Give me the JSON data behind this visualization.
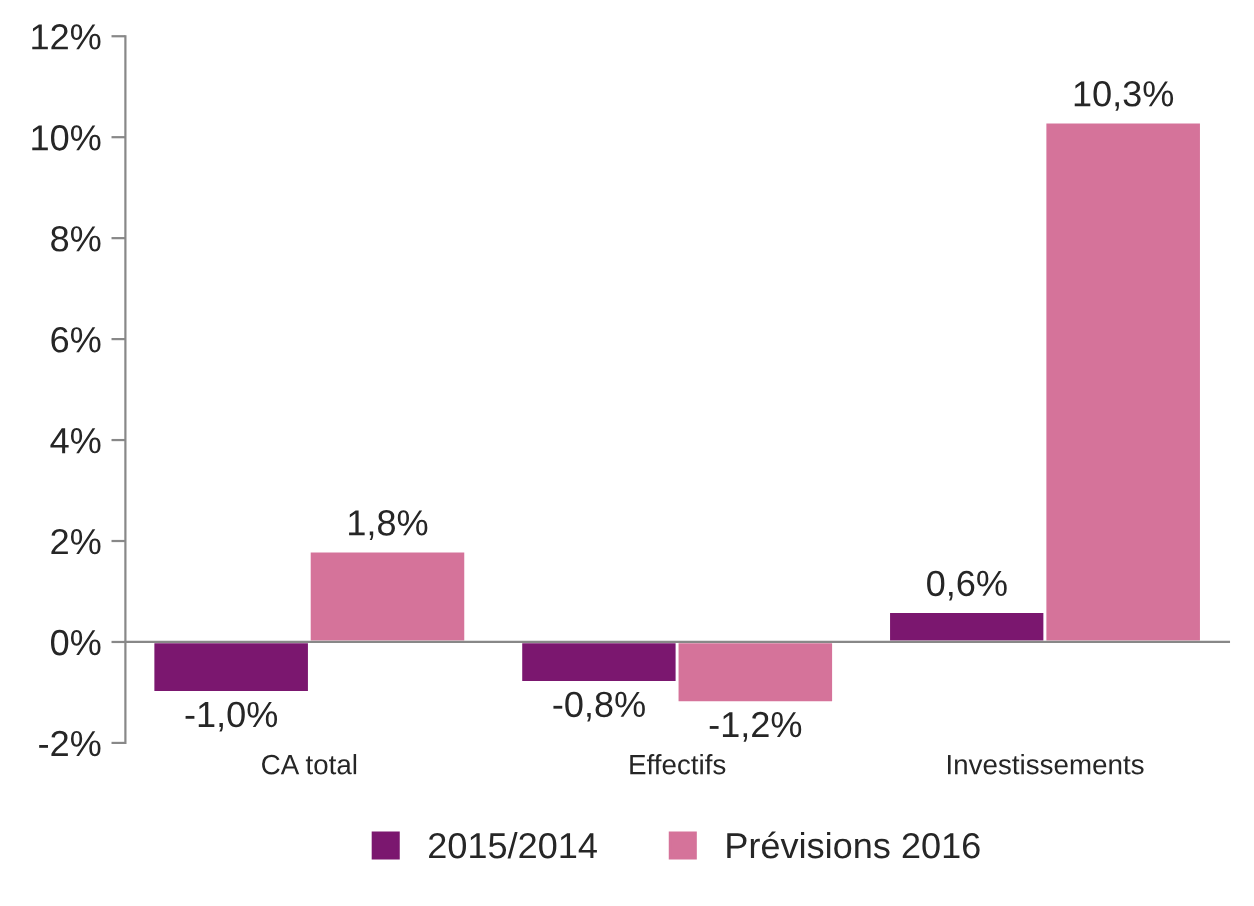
{
  "chart_data": {
    "type": "bar",
    "categories": [
      "CA total",
      "Effectifs",
      "Investissements"
    ],
    "series": [
      {
        "name": "2015/2014",
        "color": "#7b176f",
        "values": [
          -1.0,
          -0.8,
          0.6
        ],
        "value_labels": [
          "-1,0%",
          "-0,8%",
          "0,6%"
        ]
      },
      {
        "name": "Prévisions 2016",
        "color": "#d5739a",
        "values": [
          1.8,
          -1.2,
          10.3
        ],
        "value_labels": [
          "1,8%",
          "-1,2%",
          "10,3%"
        ]
      }
    ],
    "ylim": [
      -2,
      12
    ],
    "yticks": [
      {
        "value": -2,
        "label": "-2%"
      },
      {
        "value": 0,
        "label": "0%"
      },
      {
        "value": 2,
        "label": "2%"
      },
      {
        "value": 4,
        "label": "4%"
      },
      {
        "value": 6,
        "label": "6%"
      },
      {
        "value": 8,
        "label": "8%"
      },
      {
        "value": 10,
        "label": "10%"
      },
      {
        "value": 12,
        "label": "12%"
      }
    ],
    "legend": "bottom"
  }
}
